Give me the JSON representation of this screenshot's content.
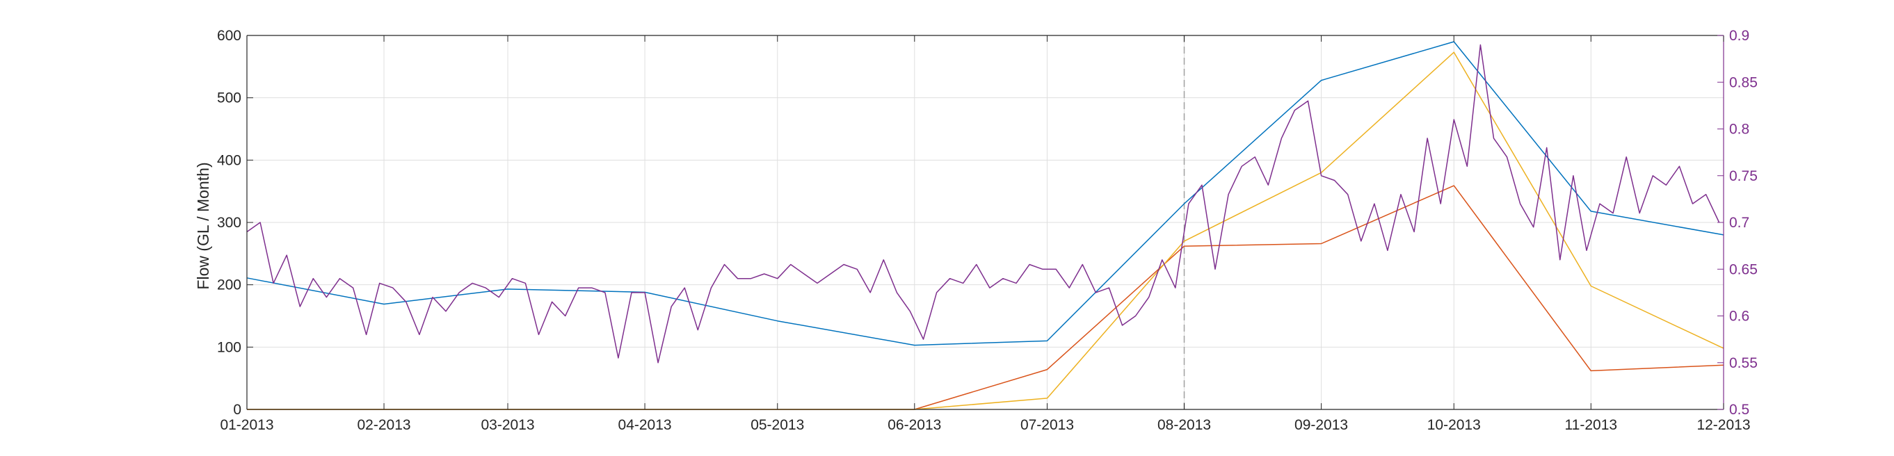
{
  "chart_data": {
    "type": "line",
    "title": "",
    "ylabel_left": "Flow (GL / Month)",
    "ylabel_right": "",
    "grid": true,
    "x_range": [
      "2013-01-01",
      "2013-12-01"
    ],
    "x_ticks": [
      "01-2013",
      "02-2013",
      "03-2013",
      "04-2013",
      "05-2013",
      "06-2013",
      "07-2013",
      "08-2013",
      "09-2013",
      "10-2013",
      "11-2013",
      "12-2013"
    ],
    "y_left": {
      "range": [
        0,
        600
      ],
      "ticks": [
        "0",
        "100",
        "200",
        "300",
        "400",
        "500",
        "600"
      ]
    },
    "y_right": {
      "range": [
        0.5,
        0.9
      ],
      "ticks": [
        "0.5",
        "0.55",
        "0.6",
        "0.65",
        "0.7",
        "0.75",
        "0.8",
        "0.85",
        "0.9"
      ],
      "color": "#7E2F8E"
    },
    "reference_line": {
      "x": "2013-08-01",
      "style": "dashed"
    },
    "colors": {
      "blue": "#0072BD",
      "red": "#D95319",
      "yellow": "#EDB120",
      "purple": "#7E2F8E"
    },
    "series": [
      {
        "axis": "left",
        "color": "#0072BD",
        "x": [
          "2013-01-01",
          "2013-02-01",
          "2013-03-01",
          "2013-04-01",
          "2013-05-01",
          "2013-06-01",
          "2013-07-01",
          "2013-08-01",
          "2013-09-01",
          "2013-10-01",
          "2013-11-01",
          "2013-12-01"
        ],
        "y": [
          211,
          169,
          193,
          188,
          142,
          103,
          110,
          330,
          528,
          590,
          318,
          280
        ]
      },
      {
        "axis": "left",
        "color": "#D95319",
        "x": [
          "2013-01-01",
          "2013-02-01",
          "2013-03-01",
          "2013-04-01",
          "2013-05-01",
          "2013-06-01",
          "2013-07-01",
          "2013-08-01",
          "2013-09-01",
          "2013-10-01",
          "2013-11-01",
          "2013-12-01"
        ],
        "y": [
          0,
          0,
          0,
          0,
          0,
          0,
          64,
          262,
          266,
          359,
          62,
          71
        ]
      },
      {
        "axis": "left",
        "color": "#EDB120",
        "x": [
          "2013-01-01",
          "2013-02-01",
          "2013-03-01",
          "2013-04-01",
          "2013-05-01",
          "2013-06-01",
          "2013-07-01",
          "2013-08-01",
          "2013-09-01",
          "2013-10-01",
          "2013-11-01",
          "2013-12-01"
        ],
        "y": [
          0,
          0,
          0,
          0,
          0,
          0,
          18,
          270,
          380,
          573,
          198,
          98
        ]
      },
      {
        "axis": "right",
        "color": "#7E2F8E",
        "x": [
          "2013-01-01",
          "2013-01-04",
          "2013-01-07",
          "2013-01-10",
          "2013-01-13",
          "2013-01-16",
          "2013-01-19",
          "2013-01-22",
          "2013-01-25",
          "2013-01-28",
          "2013-01-31",
          "2013-02-03",
          "2013-02-06",
          "2013-02-09",
          "2013-02-12",
          "2013-02-15",
          "2013-02-18",
          "2013-02-21",
          "2013-02-24",
          "2013-02-27",
          "2013-03-02",
          "2013-03-05",
          "2013-03-08",
          "2013-03-11",
          "2013-03-14",
          "2013-03-17",
          "2013-03-20",
          "2013-03-23",
          "2013-03-26",
          "2013-03-29",
          "2013-04-01",
          "2013-04-04",
          "2013-04-07",
          "2013-04-10",
          "2013-04-13",
          "2013-04-16",
          "2013-04-19",
          "2013-04-22",
          "2013-04-25",
          "2013-04-28",
          "2013-05-01",
          "2013-05-04",
          "2013-05-07",
          "2013-05-10",
          "2013-05-13",
          "2013-05-16",
          "2013-05-19",
          "2013-05-22",
          "2013-05-25",
          "2013-05-28",
          "2013-05-31",
          "2013-06-03",
          "2013-06-06",
          "2013-06-09",
          "2013-06-12",
          "2013-06-15",
          "2013-06-18",
          "2013-06-21",
          "2013-06-24",
          "2013-06-27",
          "2013-06-30",
          "2013-07-03",
          "2013-07-06",
          "2013-07-09",
          "2013-07-12",
          "2013-07-15",
          "2013-07-18",
          "2013-07-21",
          "2013-07-24",
          "2013-07-27",
          "2013-07-30",
          "2013-08-02",
          "2013-08-05",
          "2013-08-08",
          "2013-08-11",
          "2013-08-14",
          "2013-08-17",
          "2013-08-20",
          "2013-08-23",
          "2013-08-26",
          "2013-08-29",
          "2013-09-01",
          "2013-09-04",
          "2013-09-07",
          "2013-09-10",
          "2013-09-13",
          "2013-09-16",
          "2013-09-19",
          "2013-09-22",
          "2013-09-25",
          "2013-09-28",
          "2013-10-01",
          "2013-10-04",
          "2013-10-07",
          "2013-10-10",
          "2013-10-13",
          "2013-10-16",
          "2013-10-19",
          "2013-10-22",
          "2013-10-25",
          "2013-10-28",
          "2013-10-31",
          "2013-11-03",
          "2013-11-06",
          "2013-11-09",
          "2013-11-12",
          "2013-11-15",
          "2013-11-18",
          "2013-11-21",
          "2013-11-24",
          "2013-11-27",
          "2013-11-30"
        ],
        "y": [
          0.69,
          0.7,
          0.635,
          0.665,
          0.61,
          0.64,
          0.62,
          0.64,
          0.63,
          0.58,
          0.635,
          0.63,
          0.615,
          0.58,
          0.62,
          0.605,
          0.625,
          0.635,
          0.63,
          0.62,
          0.64,
          0.635,
          0.58,
          0.615,
          0.6,
          0.63,
          0.63,
          0.625,
          0.555,
          0.625,
          0.625,
          0.55,
          0.61,
          0.63,
          0.585,
          0.63,
          0.655,
          0.64,
          0.64,
          0.645,
          0.64,
          0.655,
          0.645,
          0.635,
          0.645,
          0.655,
          0.65,
          0.625,
          0.66,
          0.625,
          0.605,
          0.575,
          0.625,
          0.64,
          0.635,
          0.655,
          0.63,
          0.64,
          0.635,
          0.655,
          0.65,
          0.65,
          0.63,
          0.655,
          0.625,
          0.63,
          0.59,
          0.6,
          0.62,
          0.66,
          0.63,
          0.72,
          0.74,
          0.65,
          0.73,
          0.76,
          0.77,
          0.74,
          0.79,
          0.82,
          0.83,
          0.75,
          0.745,
          0.73,
          0.68,
          0.72,
          0.67,
          0.73,
          0.69,
          0.79,
          0.72,
          0.81,
          0.76,
          0.89,
          0.79,
          0.77,
          0.72,
          0.695,
          0.78,
          0.66,
          0.75,
          0.67,
          0.72,
          0.71,
          0.77,
          0.71,
          0.75,
          0.74,
          0.76,
          0.72,
          0.73,
          0.7
        ]
      }
    ]
  }
}
